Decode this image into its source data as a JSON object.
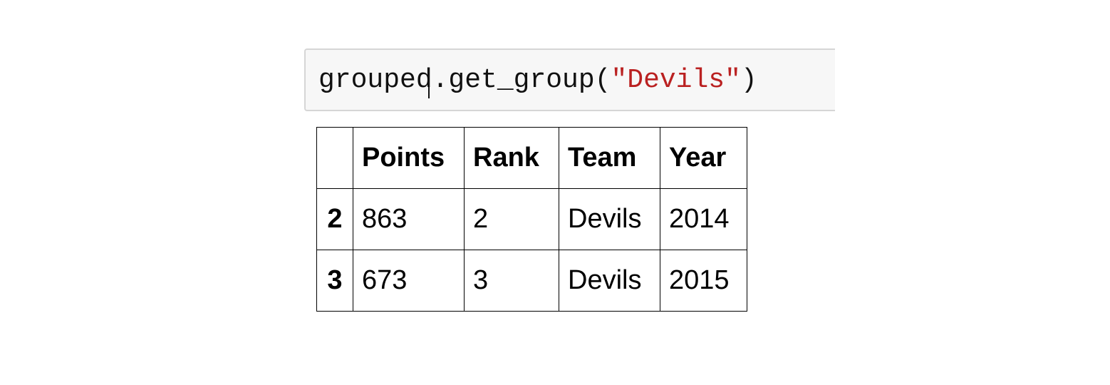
{
  "code_cell": {
    "prefix": "grouped.get_group(",
    "string_arg": "\"Devils\"",
    "suffix": ")"
  },
  "output_table": {
    "index_header": "",
    "columns": [
      "Points",
      "Rank",
      "Team",
      "Year"
    ],
    "rows": [
      {
        "index": "2",
        "cells": [
          "863",
          "2",
          "Devils",
          "2014"
        ]
      },
      {
        "index": "3",
        "cells": [
          "673",
          "3",
          "Devils",
          "2015"
        ]
      }
    ]
  }
}
